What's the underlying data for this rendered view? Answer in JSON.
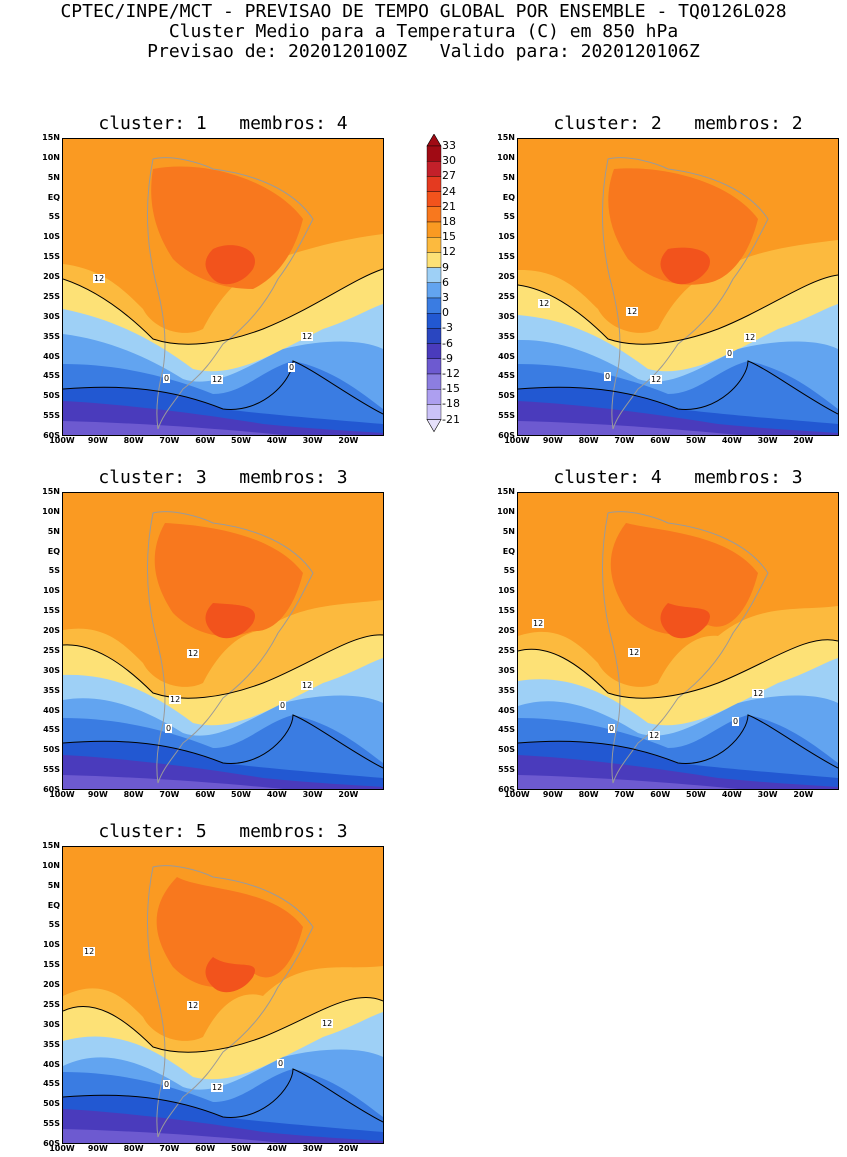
{
  "header": {
    "line1": "CPTEC/INPE/MCT - PREVISAO DE TEMPO GLOBAL POR ENSEMBLE - TQ0126L028",
    "line2": "Cluster Medio para a Temperatura (C) em 850 hPa",
    "line3": "Previsao de: 2020120100Z   Valido para: 2020120106Z"
  },
  "axes": {
    "lat_labels": [
      "15N",
      "10N",
      "5N",
      "EQ",
      "5S",
      "10S",
      "15S",
      "20S",
      "25S",
      "30S",
      "35S",
      "40S",
      "45S",
      "50S",
      "55S",
      "60S"
    ],
    "lon_labels": [
      "100W",
      "90W",
      "80W",
      "70W",
      "60W",
      "50W",
      "40W",
      "30W",
      "20W"
    ]
  },
  "colorbar": {
    "labels": [
      "33",
      "30",
      "27",
      "24",
      "21",
      "18",
      "15",
      "12",
      "9",
      "6",
      "3",
      "0",
      "-3",
      "-6",
      "-9",
      "-12",
      "-15",
      "-18",
      "-21"
    ],
    "colors": [
      "#a00a14",
      "#c3202a",
      "#e43a20",
      "#f2531c",
      "#f8781e",
      "#fa9a22",
      "#fcba3e",
      "#fde176",
      "#9ed0f6",
      "#62a4f0",
      "#3a7ce2",
      "#2258d2",
      "#2a46c0",
      "#4a3bbc",
      "#6d5ad0",
      "#8c7ee0",
      "#ad9ff0",
      "#cbc2f8"
    ]
  },
  "panels": [
    {
      "title": "cluster: 1   membros: 4",
      "contour_labels": [
        {
          "text": "12",
          "x": 30,
          "y": 135
        },
        {
          "text": "12",
          "x": 238,
          "y": 193
        },
        {
          "text": "12",
          "x": 148,
          "y": 236
        },
        {
          "text": "0",
          "x": 100,
          "y": 235
        },
        {
          "text": "0",
          "x": 225,
          "y": 224
        }
      ]
    },
    {
      "title": "cluster: 2   membros: 2",
      "contour_labels": [
        {
          "text": "12",
          "x": 20,
          "y": 160
        },
        {
          "text": "12",
          "x": 108,
          "y": 168
        },
        {
          "text": "12",
          "x": 226,
          "y": 194
        },
        {
          "text": "12",
          "x": 132,
          "y": 236
        },
        {
          "text": "0",
          "x": 86,
          "y": 233
        },
        {
          "text": "0",
          "x": 208,
          "y": 210
        }
      ]
    },
    {
      "title": "cluster: 3   membros: 3",
      "contour_labels": [
        {
          "text": "12",
          "x": 124,
          "y": 156
        },
        {
          "text": "12",
          "x": 106,
          "y": 202
        },
        {
          "text": "12",
          "x": 238,
          "y": 188
        },
        {
          "text": "0",
          "x": 102,
          "y": 231
        },
        {
          "text": "0",
          "x": 216,
          "y": 208
        }
      ]
    },
    {
      "title": "cluster: 4   membros: 3",
      "contour_labels": [
        {
          "text": "12",
          "x": 14,
          "y": 126
        },
        {
          "text": "12",
          "x": 110,
          "y": 155
        },
        {
          "text": "12",
          "x": 234,
          "y": 196
        },
        {
          "text": "12",
          "x": 130,
          "y": 238
        },
        {
          "text": "0",
          "x": 90,
          "y": 231
        },
        {
          "text": "0",
          "x": 214,
          "y": 224
        }
      ]
    },
    {
      "title": "cluster: 5   membros: 3",
      "contour_labels": [
        {
          "text": "12",
          "x": 20,
          "y": 100
        },
        {
          "text": "12",
          "x": 124,
          "y": 154
        },
        {
          "text": "12",
          "x": 258,
          "y": 172
        },
        {
          "text": "12",
          "x": 148,
          "y": 236
        },
        {
          "text": "0",
          "x": 100,
          "y": 233
        },
        {
          "text": "0",
          "x": 214,
          "y": 212
        }
      ]
    }
  ]
}
